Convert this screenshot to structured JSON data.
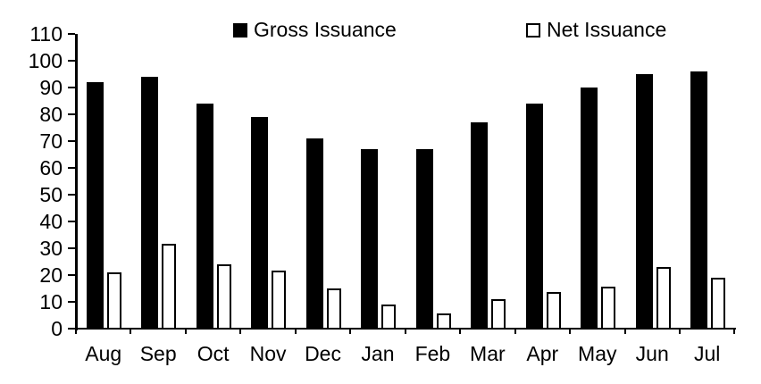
{
  "chart_data": {
    "type": "bar",
    "title": "",
    "xlabel": "",
    "ylabel": "",
    "categories": [
      "Aug",
      "Sep",
      "Oct",
      "Nov",
      "Dec",
      "Jan",
      "Feb",
      "Mar",
      "Apr",
      "May",
      "Jun",
      "Jul"
    ],
    "series": [
      {
        "name": "Gross Issuance",
        "values": [
          92,
          94,
          84,
          79,
          71,
          67,
          67,
          77,
          84,
          90,
          95,
          96
        ],
        "fill": "#000000",
        "border": "#000000"
      },
      {
        "name": "Net Issuance",
        "values": [
          21,
          31.5,
          24,
          21.5,
          15,
          9,
          5.5,
          11,
          13.5,
          15.5,
          23,
          19
        ],
        "fill": "#ffffff",
        "border": "#000000"
      }
    ],
    "ylim": [
      0,
      110
    ],
    "ytick_interval": 10,
    "ytick_labels": [
      "0",
      "10",
      "20",
      "30",
      "40",
      "50",
      "60",
      "70",
      "80",
      "90",
      "100",
      "110"
    ],
    "grid": false,
    "legend_position": "top"
  },
  "colors": {
    "background": "#ffffff",
    "axis": "#000000",
    "text": "#000000",
    "gross_fill": "#000000",
    "net_fill": "#ffffff",
    "net_border": "#000000"
  }
}
